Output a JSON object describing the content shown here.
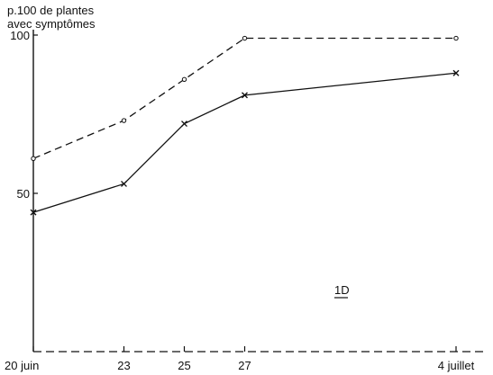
{
  "chart_data": {
    "type": "line",
    "ylabel_lines": [
      "p.100 de plantes",
      "avec symptômes"
    ],
    "xlabel": "",
    "x": [
      20,
      23,
      25,
      27,
      34
    ],
    "xtick_values": [
      20,
      23,
      25,
      27,
      34
    ],
    "xtick_labels": [
      "20 juin",
      "23",
      "25",
      "27",
      "4 juillet"
    ],
    "ytick_values": [
      50,
      100
    ],
    "ytick_labels": [
      "50",
      "100"
    ],
    "xlim": [
      20,
      34
    ],
    "ylim": [
      0,
      100
    ],
    "panel_label": "1D",
    "legend": "none",
    "grid": false,
    "series": [
      {
        "style": "dashed",
        "marker": "circle",
        "values": [
          61,
          73,
          86,
          99,
          99
        ]
      },
      {
        "style": "solid",
        "marker": "cross",
        "values": [
          44,
          53,
          72,
          81,
          88
        ]
      }
    ]
  }
}
